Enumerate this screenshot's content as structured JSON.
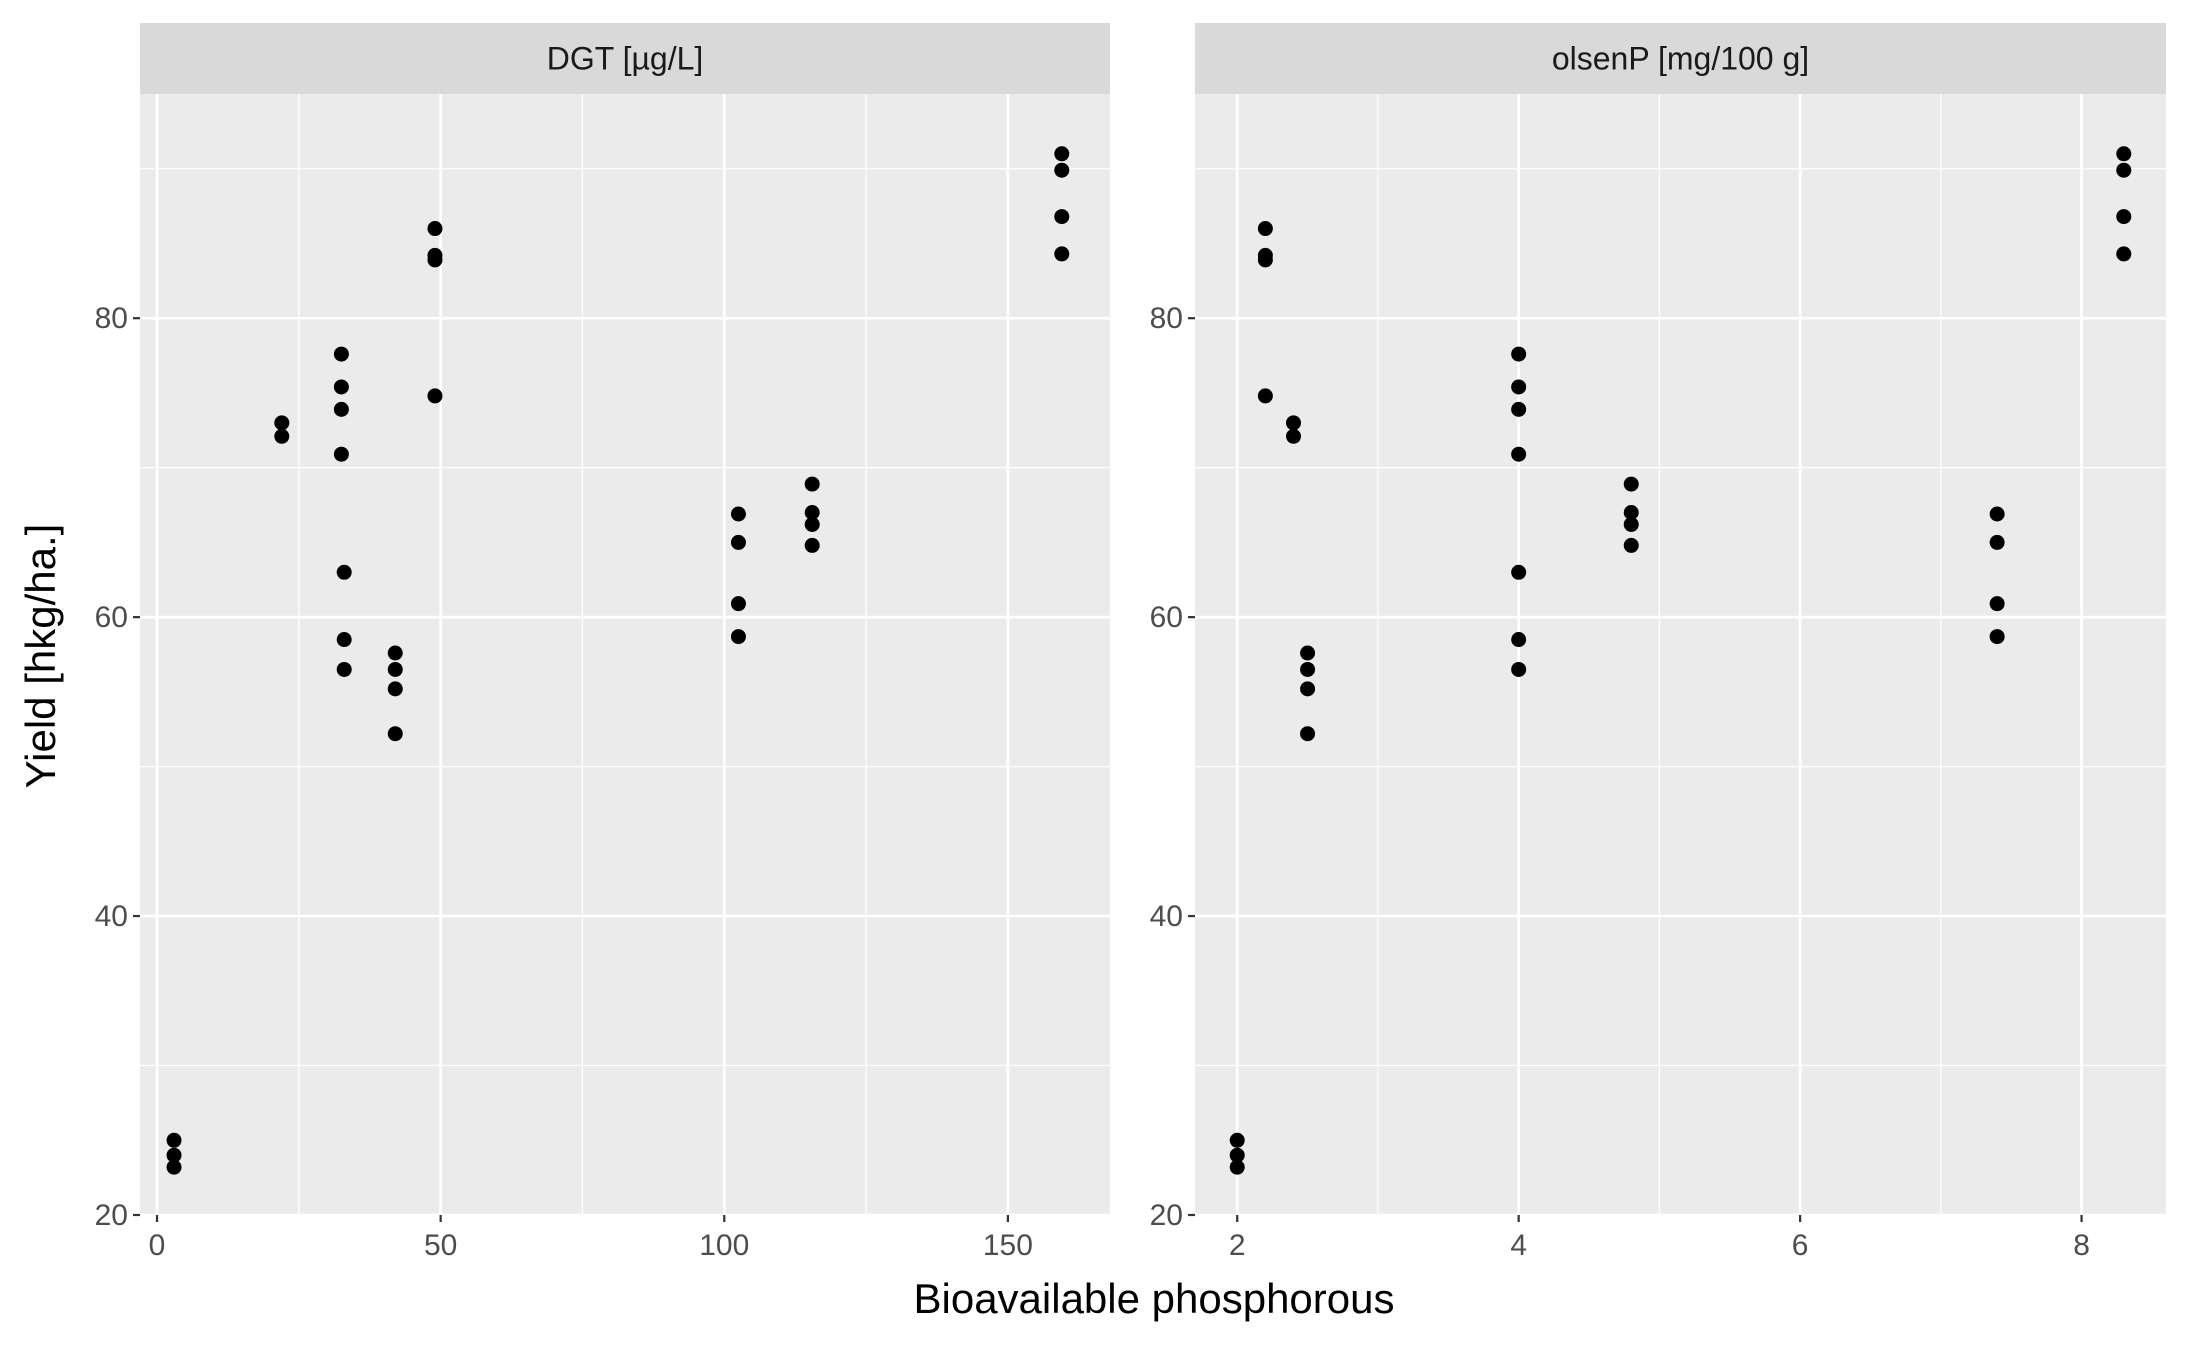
{
  "chart_data": {
    "type": "scatter",
    "xlabel": "Bioavailable phosphorous",
    "ylabel": "Yield [hkg/ha.]",
    "ylim": [
      20,
      95
    ],
    "y_major_ticks": [
      20,
      40,
      60,
      80
    ],
    "grid": true,
    "panel_background": "#ebebeb",
    "strip_background": "#d9d9d9",
    "point_color": "#000000",
    "panels": [
      {
        "strip": "DGT [µg/L]",
        "xlim": [
          -3,
          168
        ],
        "x_major_ticks": [
          0,
          50,
          100,
          150
        ],
        "points": [
          {
            "x": 3,
            "y": 25
          },
          {
            "x": 3,
            "y": 24
          },
          {
            "x": 3,
            "y": 23.2
          },
          {
            "x": 22,
            "y": 73
          },
          {
            "x": 22,
            "y": 72.1
          },
          {
            "x": 32.5,
            "y": 77.6
          },
          {
            "x": 32.5,
            "y": 75.4
          },
          {
            "x": 32.5,
            "y": 73.9
          },
          {
            "x": 32.5,
            "y": 70.9
          },
          {
            "x": 33,
            "y": 63
          },
          {
            "x": 33,
            "y": 58.5
          },
          {
            "x": 33,
            "y": 56.5
          },
          {
            "x": 42,
            "y": 57.6
          },
          {
            "x": 42,
            "y": 56.5
          },
          {
            "x": 42,
            "y": 55.2
          },
          {
            "x": 42,
            "y": 52.2
          },
          {
            "x": 49,
            "y": 86
          },
          {
            "x": 49,
            "y": 84.2
          },
          {
            "x": 49,
            "y": 83.9
          },
          {
            "x": 49,
            "y": 74.8
          },
          {
            "x": 102.5,
            "y": 66.9
          },
          {
            "x": 102.5,
            "y": 65
          },
          {
            "x": 102.5,
            "y": 60.9
          },
          {
            "x": 102.5,
            "y": 58.7
          },
          {
            "x": 115.5,
            "y": 68.9
          },
          {
            "x": 115.5,
            "y": 67
          },
          {
            "x": 115.5,
            "y": 66.2
          },
          {
            "x": 115.5,
            "y": 64.8
          },
          {
            "x": 159.5,
            "y": 91
          },
          {
            "x": 159.5,
            "y": 89.9
          },
          {
            "x": 159.5,
            "y": 86.8
          },
          {
            "x": 159.5,
            "y": 84.3
          }
        ]
      },
      {
        "strip": "olsenP [mg/100 g]",
        "xlim": [
          1.7,
          8.6
        ],
        "x_major_ticks": [
          2,
          4,
          6,
          8
        ],
        "points": [
          {
            "x": 2,
            "y": 25
          },
          {
            "x": 2,
            "y": 24
          },
          {
            "x": 2,
            "y": 23.2
          },
          {
            "x": 2.2,
            "y": 86
          },
          {
            "x": 2.2,
            "y": 84.2
          },
          {
            "x": 2.2,
            "y": 83.9
          },
          {
            "x": 2.2,
            "y": 74.8
          },
          {
            "x": 2.4,
            "y": 73
          },
          {
            "x": 2.4,
            "y": 72.1
          },
          {
            "x": 2.5,
            "y": 57.6
          },
          {
            "x": 2.5,
            "y": 56.5
          },
          {
            "x": 2.5,
            "y": 55.2
          },
          {
            "x": 2.5,
            "y": 52.2
          },
          {
            "x": 4,
            "y": 77.6
          },
          {
            "x": 4,
            "y": 75.4
          },
          {
            "x": 4,
            "y": 73.9
          },
          {
            "x": 4,
            "y": 70.9
          },
          {
            "x": 4,
            "y": 63
          },
          {
            "x": 4,
            "y": 58.5
          },
          {
            "x": 4,
            "y": 56.5
          },
          {
            "x": 4.8,
            "y": 68.9
          },
          {
            "x": 4.8,
            "y": 67
          },
          {
            "x": 4.8,
            "y": 66.2
          },
          {
            "x": 4.8,
            "y": 64.8
          },
          {
            "x": 7.4,
            "y": 66.9
          },
          {
            "x": 7.4,
            "y": 65
          },
          {
            "x": 7.4,
            "y": 60.9
          },
          {
            "x": 7.4,
            "y": 58.7
          },
          {
            "x": 8.3,
            "y": 91
          },
          {
            "x": 8.3,
            "y": 89.9
          },
          {
            "x": 8.3,
            "y": 86.8
          },
          {
            "x": 8.3,
            "y": 84.3
          }
        ]
      }
    ]
  }
}
